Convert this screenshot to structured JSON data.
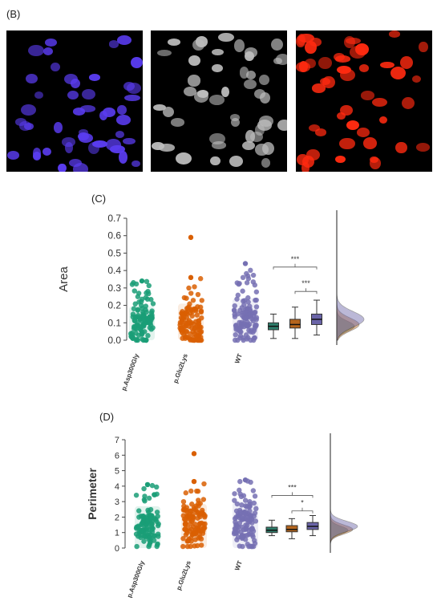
{
  "figure": {
    "panel_b_label": "(B)",
    "panel_c_label": "(C)",
    "panel_d_label": "(D)"
  },
  "microscopy": {
    "panels": [
      {
        "stain": "merged",
        "color": "#5a3cf0"
      },
      {
        "stain": "grayscale",
        "color": "#bdbdbd"
      },
      {
        "stain": "red",
        "color": "#ff2a10"
      }
    ]
  },
  "colors": {
    "p_asp300gly": "#1a9e77",
    "p_glu2lys": "#d95f02",
    "wt": "#7570b3"
  },
  "chart_data": [
    {
      "type": "scatter",
      "panel": "C",
      "ylabel": "Area",
      "xlabel": "",
      "ylim": [
        0,
        0.7
      ],
      "yticks": [
        "0.0",
        "0.1",
        "0.2",
        "0.3",
        "0.4",
        "0.5",
        "0.6",
        "0.7"
      ],
      "categories": [
        "p.Asp300Gly",
        "p.Glu2Lys",
        "WT"
      ],
      "series": [
        {
          "name": "p.Asp300Gly",
          "color": "#1a9e77",
          "median": 0.09,
          "q1": 0.06,
          "q3": 0.13,
          "max": 0.34,
          "min": 0.0
        },
        {
          "name": "p.Glu2Lys",
          "color": "#d95f02",
          "median": 0.09,
          "q1": 0.05,
          "q3": 0.14,
          "max": 0.36,
          "min": 0.0,
          "outlier": 0.59
        },
        {
          "name": "WT",
          "color": "#7570b3",
          "median": 0.11,
          "q1": 0.07,
          "q3": 0.16,
          "max": 0.44,
          "min": 0.0
        }
      ],
      "boxplots": [
        {
          "color": "#2e7d6b",
          "min": 0.01,
          "q1": 0.06,
          "median": 0.08,
          "q3": 0.1,
          "max": 0.15
        },
        {
          "color": "#b5651d",
          "min": 0.01,
          "q1": 0.07,
          "median": 0.09,
          "q3": 0.12,
          "max": 0.19
        },
        {
          "color": "#6a64a8",
          "min": 0.03,
          "q1": 0.09,
          "median": 0.12,
          "q3": 0.15,
          "max": 0.23
        }
      ],
      "annotations": [
        {
          "text": "***",
          "from": 0,
          "to": 2,
          "y": 0.42
        },
        {
          "text": "***",
          "from": 1,
          "to": 2,
          "y": 0.28
        }
      ]
    },
    {
      "type": "scatter",
      "panel": "D",
      "ylabel": "Perimeter",
      "xlabel": "",
      "ylim": [
        0,
        7
      ],
      "yticks": [
        "0",
        "1",
        "2",
        "3",
        "4",
        "5",
        "6",
        "7"
      ],
      "categories": [
        "p.Asp300Gly",
        "p.Glu2Lys",
        "WT"
      ],
      "series": [
        {
          "name": "p.Asp300Gly",
          "color": "#1a9e77",
          "median": 1.3,
          "q1": 1.0,
          "q3": 1.8,
          "max": 4.1,
          "min": 0.1
        },
        {
          "name": "p.Glu2Lys",
          "color": "#d95f02",
          "median": 1.3,
          "q1": 0.9,
          "q3": 1.9,
          "max": 4.3,
          "min": 0.1,
          "outlier": 6.1
        },
        {
          "name": "WT",
          "color": "#7570b3",
          "median": 1.4,
          "q1": 1.0,
          "q3": 2.0,
          "max": 4.4,
          "min": 0.1
        }
      ],
      "boxplots": [
        {
          "color": "#2e7d6b",
          "min": 0.8,
          "q1": 1.0,
          "median": 1.15,
          "q3": 1.35,
          "max": 1.8
        },
        {
          "color": "#b5651d",
          "min": 0.6,
          "q1": 1.05,
          "median": 1.2,
          "q3": 1.45,
          "max": 1.9
        },
        {
          "color": "#6a64a8",
          "min": 0.8,
          "q1": 1.2,
          "median": 1.4,
          "q3": 1.65,
          "max": 2.1
        }
      ],
      "annotations": [
        {
          "text": "***",
          "from": 0,
          "to": 2,
          "y": 3.4
        },
        {
          "text": "*",
          "from": 1,
          "to": 2,
          "y": 2.4
        }
      ]
    }
  ]
}
